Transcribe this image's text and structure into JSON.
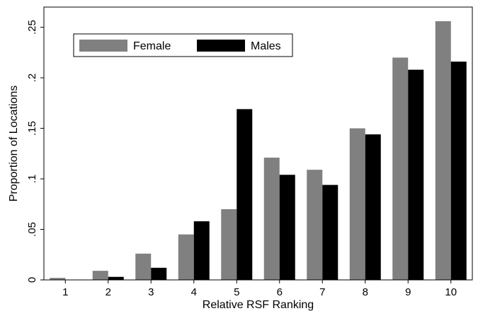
{
  "chart_data": {
    "type": "bar",
    "title": "",
    "xlabel": "Relative RSF Ranking",
    "ylabel": "Proportion of Locations",
    "categories": [
      "1",
      "2",
      "3",
      "4",
      "5",
      "6",
      "7",
      "8",
      "9",
      "10"
    ],
    "series": [
      {
        "name": "Female",
        "color": "#808080",
        "values": [
          0.002,
          0.009,
          0.026,
          0.045,
          0.07,
          0.121,
          0.109,
          0.15,
          0.22,
          0.256
        ]
      },
      {
        "name": "Males",
        "color": "#000000",
        "values": [
          0.0,
          0.003,
          0.012,
          0.058,
          0.169,
          0.104,
          0.094,
          0.144,
          0.208,
          0.216
        ]
      }
    ],
    "ylim": [
      0,
      0.27
    ],
    "yticks": [
      0,
      0.05,
      0.1,
      0.15,
      0.2,
      0.25
    ],
    "ytick_labels": [
      "0",
      ".05",
      ".1",
      ".15",
      ".2",
      ".25"
    ],
    "grid": false,
    "legend_position": "top-left"
  }
}
